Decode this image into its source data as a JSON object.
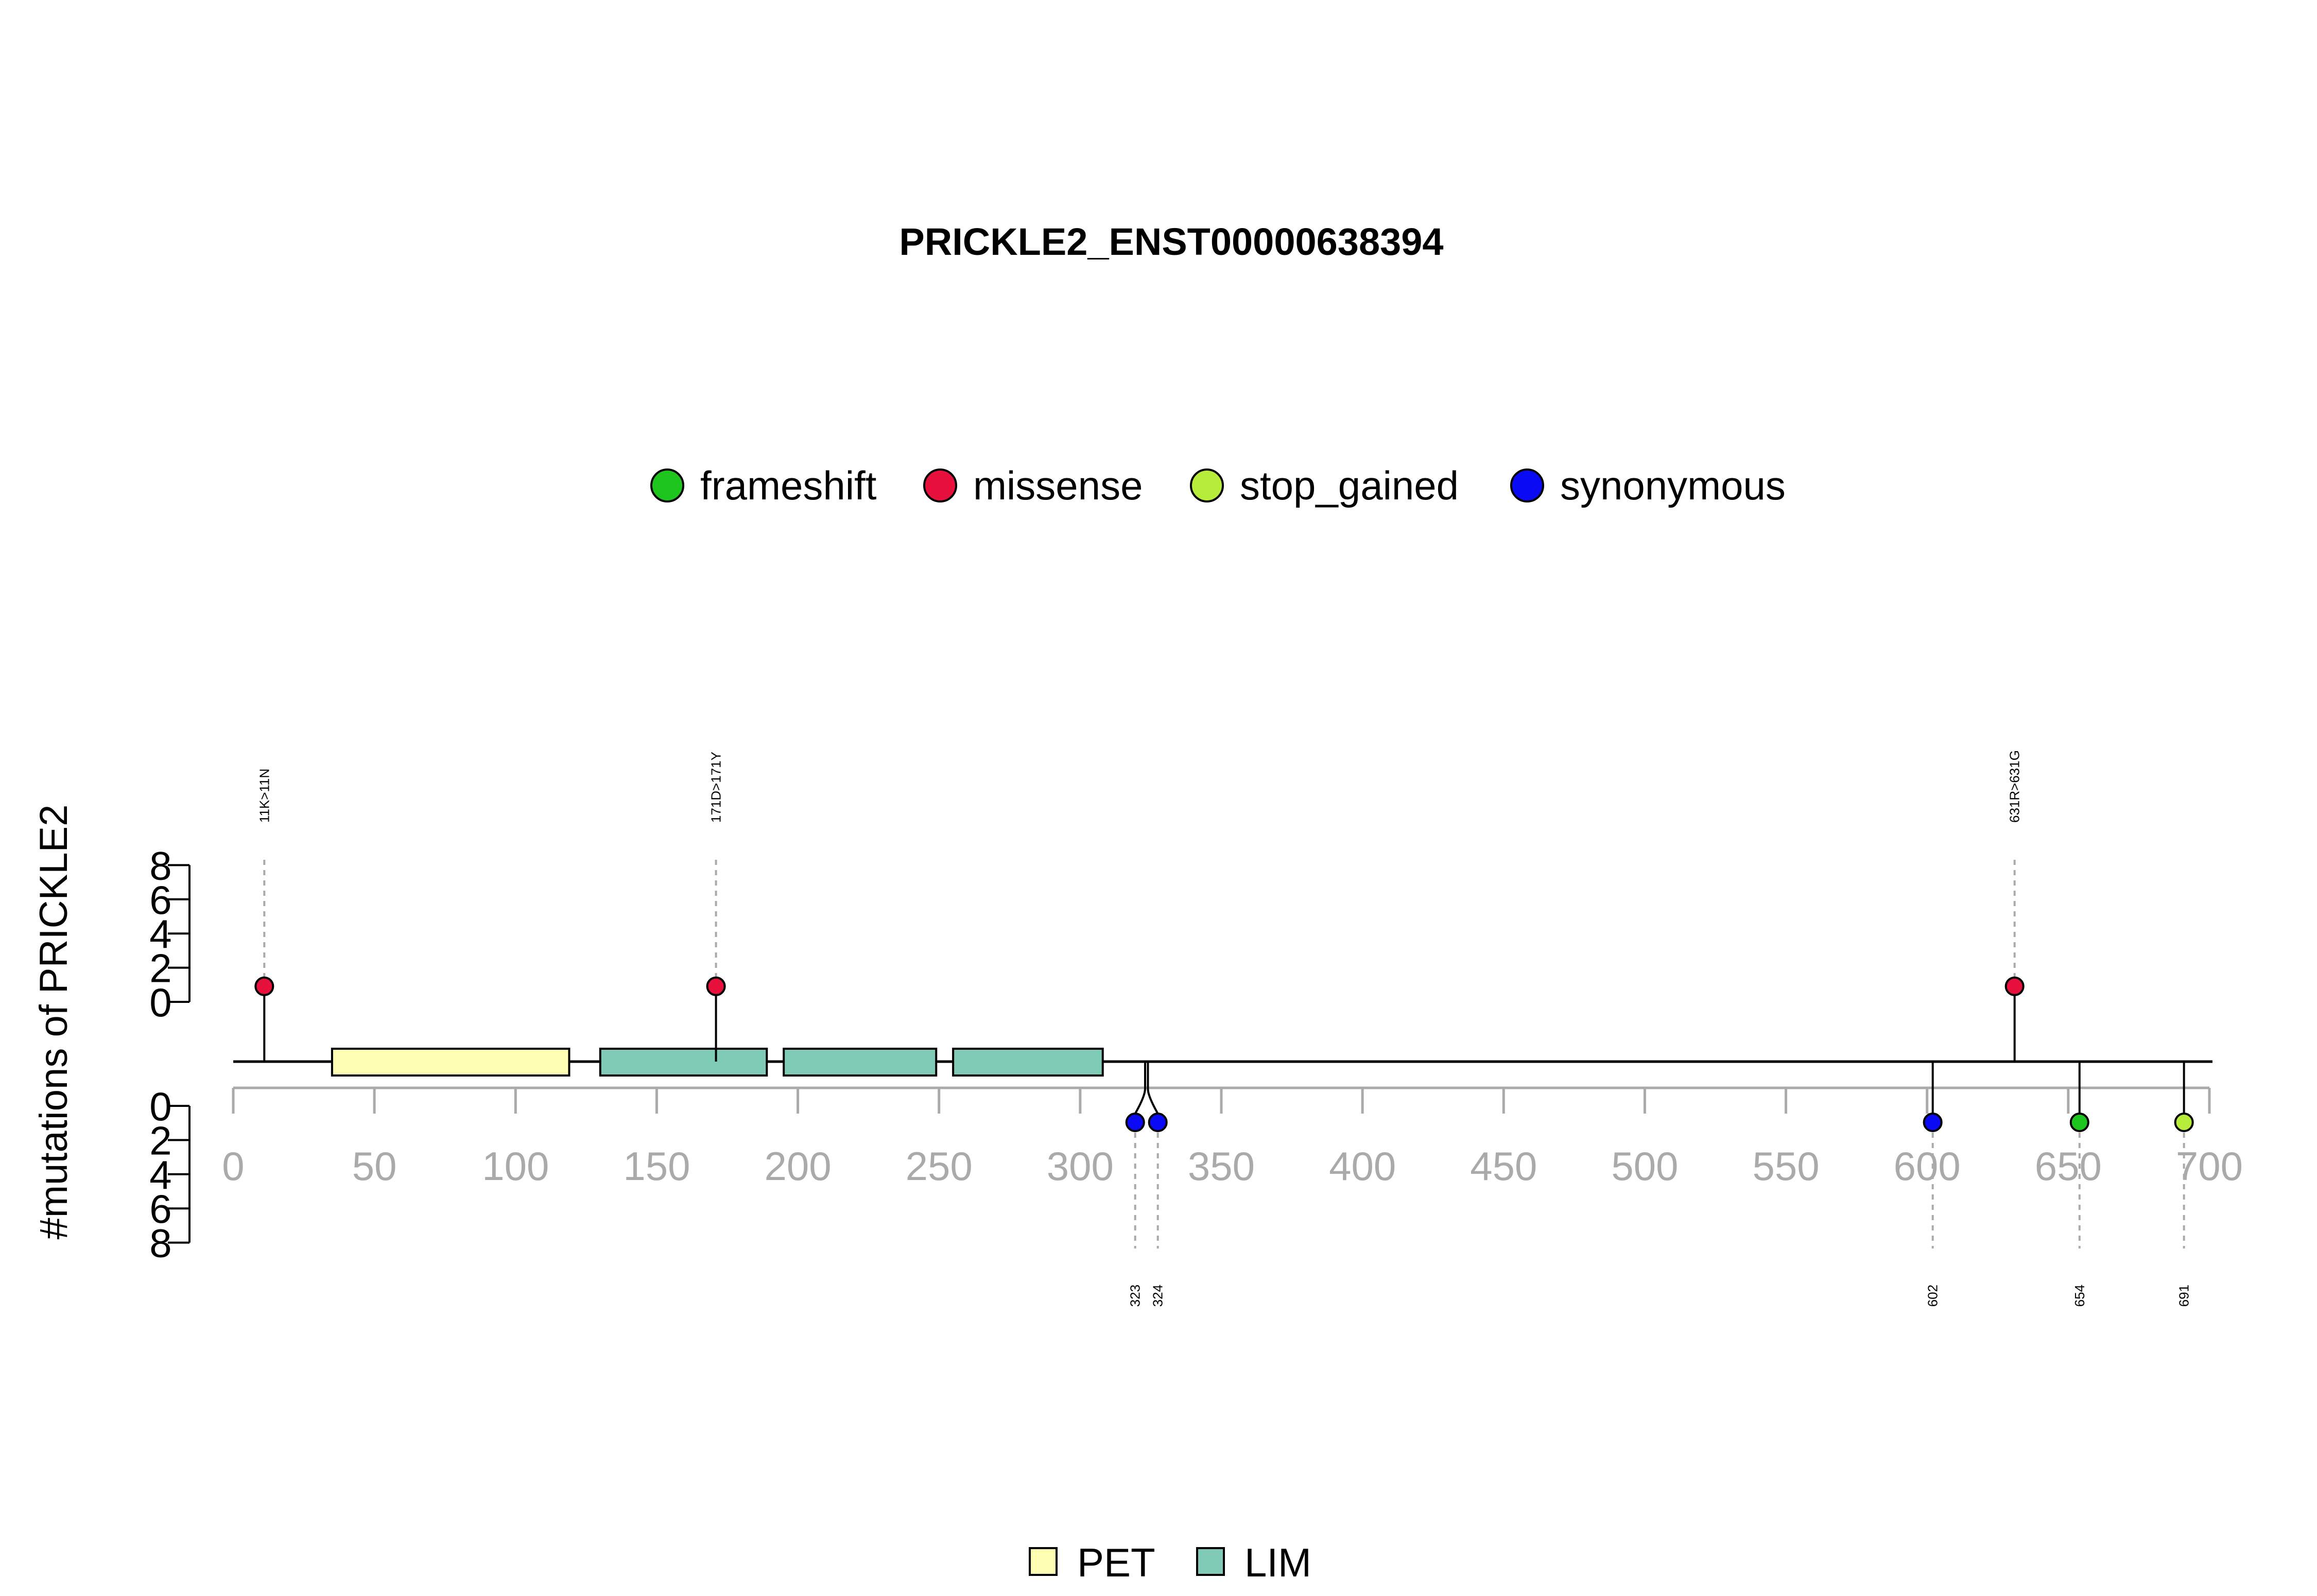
{
  "chart_data": {
    "type": "lollipop",
    "title": "PRICKLE2_ENST00000638394",
    "ylabel": "#mutations of PRICKLE2",
    "xlim": [
      0,
      700
    ],
    "x_ticks": [
      0,
      50,
      100,
      150,
      200,
      250,
      300,
      350,
      400,
      450,
      500,
      550,
      600,
      650,
      700
    ],
    "y_ticks_top": [
      0,
      2,
      4,
      6,
      8
    ],
    "y_ticks_bottom": [
      0,
      2,
      4,
      6,
      8
    ],
    "mutation_legend": [
      {
        "name": "frameshift",
        "color": "#1ec51e"
      },
      {
        "name": "missense",
        "color": "#e8103c"
      },
      {
        "name": "stop_gained",
        "color": "#b7ec3a"
      },
      {
        "name": "synonymous",
        "color": "#0a0af5"
      }
    ],
    "domain_legend": [
      {
        "name": "PET",
        "color": "#ffffb3"
      },
      {
        "name": "LIM",
        "color": "#7fcbb6"
      }
    ],
    "domains": [
      {
        "name": "PET",
        "start": 35,
        "end": 119
      },
      {
        "name": "LIM",
        "start": 130,
        "end": 189
      },
      {
        "name": "LIM",
        "start": 195,
        "end": 249
      },
      {
        "name": "LIM",
        "start": 255,
        "end": 308
      }
    ],
    "mutations_top": [
      {
        "position": 11,
        "count": 1,
        "type": "missense",
        "label": "11K>11N"
      },
      {
        "position": 171,
        "count": 1,
        "type": "missense",
        "label": "171D>171Y"
      },
      {
        "position": 631,
        "count": 1,
        "type": "missense",
        "label": "631R>631G"
      }
    ],
    "mutations_bottom": [
      {
        "position": 323,
        "count": 1,
        "type": "synonymous",
        "label": "323"
      },
      {
        "position": 324,
        "count": 1,
        "type": "synonymous",
        "label": "324"
      },
      {
        "position": 602,
        "count": 1,
        "type": "synonymous",
        "label": "602"
      },
      {
        "position": 654,
        "count": 1,
        "type": "frameshift",
        "label": "654"
      },
      {
        "position": 691,
        "count": 1,
        "type": "stop_gained",
        "label": "691"
      }
    ]
  }
}
